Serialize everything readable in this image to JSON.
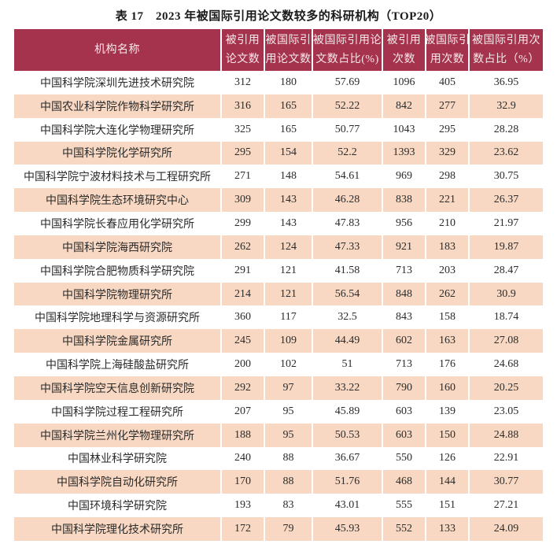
{
  "page": {
    "title": "表 17　2023 年被国际引用论文数较多的科研机构（TOP20）"
  },
  "colors": {
    "header_bg": "#A5334E",
    "header_text": "#F7E9E9",
    "row_alt_bg": "#F8D8C2",
    "row_bg": "#FFFFFF",
    "body_text": "#2B2B2B",
    "title_text": "#1A1A1A",
    "divider": "#FFFFFF"
  },
  "table": {
    "columns": [
      {
        "line1": "机构名称",
        "line2": ""
      },
      {
        "line1": "被引用",
        "line2": "论文数"
      },
      {
        "line1": "被国际引",
        "line2": "用论文数"
      },
      {
        "line1": "被国际引用论",
        "line2": "文数占比(%)"
      },
      {
        "line1": "被引用",
        "line2": "次数"
      },
      {
        "line1": "被国际引",
        "line2": "用次数"
      },
      {
        "line1": "被国际引用次",
        "line2": "数占比（%）"
      }
    ],
    "rows": [
      {
        "name": "中国科学院深圳先进技术研究院",
        "values": [
          "312",
          "180",
          "57.69",
          "1096",
          "405",
          "36.95"
        ]
      },
      {
        "name": "中国农业科学院作物科学研究所",
        "values": [
          "316",
          "165",
          "52.22",
          "842",
          "277",
          "32.9"
        ]
      },
      {
        "name": "中国科学院大连化学物理研究所",
        "values": [
          "325",
          "165",
          "50.77",
          "1043",
          "295",
          "28.28"
        ]
      },
      {
        "name": "中国科学院化学研究所",
        "values": [
          "295",
          "154",
          "52.2",
          "1393",
          "329",
          "23.62"
        ]
      },
      {
        "name": "中国科学院宁波材料技术与工程研究所",
        "values": [
          "271",
          "148",
          "54.61",
          "969",
          "298",
          "30.75"
        ]
      },
      {
        "name": "中国科学院生态环境研究中心",
        "values": [
          "309",
          "143",
          "46.28",
          "838",
          "221",
          "26.37"
        ]
      },
      {
        "name": "中国科学院长春应用化学研究所",
        "values": [
          "299",
          "143",
          "47.83",
          "956",
          "210",
          "21.97"
        ]
      },
      {
        "name": "中国科学院海西研究院",
        "values": [
          "262",
          "124",
          "47.33",
          "921",
          "183",
          "19.87"
        ]
      },
      {
        "name": "中国科学院合肥物质科学研究院",
        "values": [
          "291",
          "121",
          "41.58",
          "713",
          "203",
          "28.47"
        ]
      },
      {
        "name": "中国科学院物理研究所",
        "values": [
          "214",
          "121",
          "56.54",
          "848",
          "262",
          "30.9"
        ]
      },
      {
        "name": "中国科学院地理科学与资源研究所",
        "values": [
          "360",
          "117",
          "32.5",
          "843",
          "158",
          "18.74"
        ]
      },
      {
        "name": "中国科学院金属研究所",
        "values": [
          "245",
          "109",
          "44.49",
          "602",
          "163",
          "27.08"
        ]
      },
      {
        "name": "中国科学院上海硅酸盐研究所",
        "values": [
          "200",
          "102",
          "51",
          "713",
          "176",
          "24.68"
        ]
      },
      {
        "name": "中国科学院空天信息创新研究院",
        "values": [
          "292",
          "97",
          "33.22",
          "790",
          "160",
          "20.25"
        ]
      },
      {
        "name": "中国科学院过程工程研究所",
        "values": [
          "207",
          "95",
          "45.89",
          "603",
          "139",
          "23.05"
        ]
      },
      {
        "name": "中国科学院兰州化学物理研究所",
        "values": [
          "188",
          "95",
          "50.53",
          "603",
          "150",
          "24.88"
        ]
      },
      {
        "name": "中国林业科学研究院",
        "values": [
          "240",
          "88",
          "36.67",
          "550",
          "126",
          "22.91"
        ]
      },
      {
        "name": "中国科学院自动化研究所",
        "values": [
          "170",
          "88",
          "51.76",
          "468",
          "144",
          "30.77"
        ]
      },
      {
        "name": "中国环境科学研究院",
        "values": [
          "193",
          "83",
          "43.01",
          "555",
          "151",
          "27.21"
        ]
      },
      {
        "name": "中国科学院理化技术研究所",
        "values": [
          "172",
          "79",
          "45.93",
          "552",
          "133",
          "24.09"
        ]
      }
    ]
  }
}
